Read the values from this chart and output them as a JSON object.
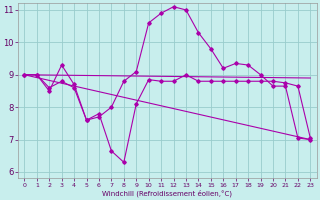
{
  "xlabel": "Windchill (Refroidissement éolien,°C)",
  "bg_color": "#c8eeed",
  "line_color": "#aa00aa",
  "grid_color": "#99cccc",
  "axis_color": "#660066",
  "xlim": [
    -0.5,
    23.5
  ],
  "ylim": [
    5.8,
    11.2
  ],
  "yticks": [
    6,
    7,
    8,
    9,
    10,
    11
  ],
  "xticks": [
    0,
    1,
    2,
    3,
    4,
    5,
    6,
    7,
    8,
    9,
    10,
    11,
    12,
    13,
    14,
    15,
    16,
    17,
    18,
    19,
    20,
    21,
    22,
    23
  ],
  "line1_x": [
    0,
    1,
    2,
    3,
    4,
    5,
    6,
    7,
    8,
    9,
    10,
    11,
    12,
    13,
    14,
    15,
    16,
    17,
    18,
    19,
    20,
    21,
    22,
    23
  ],
  "line1_y": [
    9.0,
    9.0,
    8.5,
    9.3,
    8.7,
    7.6,
    7.7,
    8.0,
    8.8,
    9.1,
    10.6,
    10.9,
    11.1,
    11.0,
    10.3,
    9.8,
    9.2,
    9.35,
    9.3,
    9.0,
    8.65,
    8.65,
    7.05,
    7.0
  ],
  "line2_x": [
    0,
    1,
    2,
    3,
    4,
    5,
    6,
    7,
    8,
    9,
    10,
    11,
    12,
    13,
    14,
    15,
    16,
    17,
    18,
    19,
    20,
    21,
    22,
    23
  ],
  "line2_y": [
    9.0,
    9.0,
    8.6,
    8.8,
    8.6,
    7.6,
    7.8,
    6.65,
    6.3,
    8.1,
    8.85,
    8.8,
    8.8,
    9.0,
    8.8,
    8.8,
    8.8,
    8.8,
    8.8,
    8.8,
    8.8,
    8.75,
    8.65,
    7.05
  ],
  "line3_x": [
    0,
    23
  ],
  "line3_y": [
    9.0,
    8.9
  ],
  "line4_x": [
    0,
    23
  ],
  "line4_y": [
    9.0,
    7.0
  ]
}
